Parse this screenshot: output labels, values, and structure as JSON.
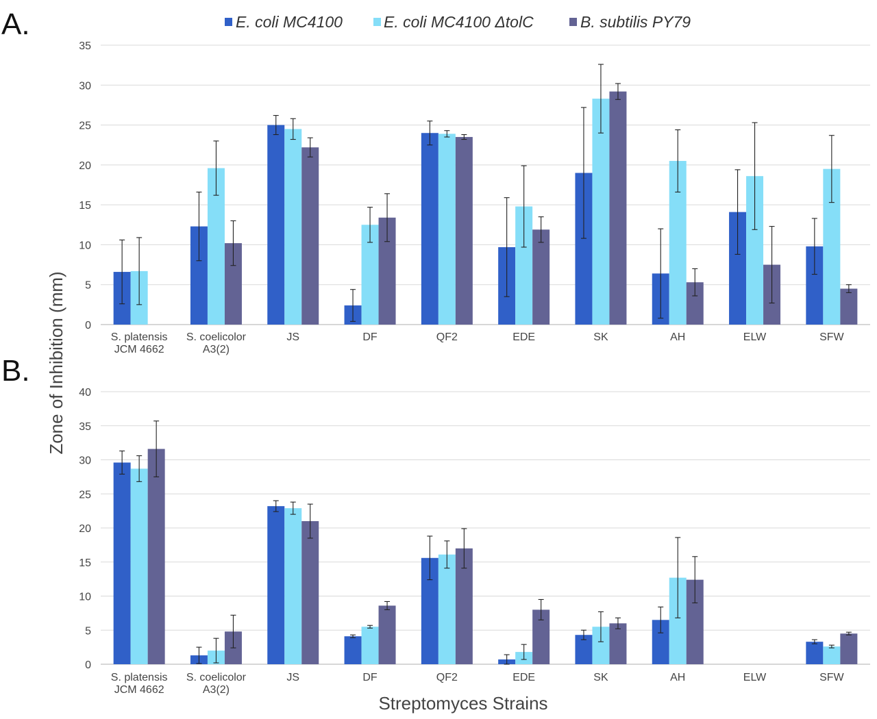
{
  "panels": [
    "A.",
    "B."
  ],
  "legend": [
    {
      "name": "E. coli MC4100",
      "color": "#3060c8"
    },
    {
      "name": "E. coli MC4100 ΔtolC",
      "color": "#85def8"
    },
    {
      "name": "B. subtilis PY79",
      "color": "#636394"
    }
  ],
  "ylabel": "Zone of Inhibition (mm)",
  "xlabel": "Streptomyces Strains",
  "chart_data": [
    {
      "type": "bar",
      "panel": "A.",
      "categories": [
        [
          "S. platensis",
          "JCM 4662"
        ],
        [
          "S. coelicolor",
          "A3(2)"
        ],
        [
          "JS"
        ],
        [
          "DF"
        ],
        [
          "QF2"
        ],
        [
          "EDE"
        ],
        [
          "SK"
        ],
        [
          "AH"
        ],
        [
          "ELW"
        ],
        [
          "SFW"
        ]
      ],
      "ylim": [
        0,
        35
      ],
      "yticks": [
        0,
        5,
        10,
        15,
        20,
        25,
        30,
        35
      ],
      "grid": true,
      "legend_position": "top",
      "series": [
        {
          "name": "E. coli MC4100",
          "values": [
            6.6,
            12.3,
            25.0,
            2.4,
            24.0,
            9.7,
            19.0,
            6.4,
            14.1,
            9.8
          ],
          "errors": [
            4.0,
            4.3,
            1.2,
            2.0,
            1.5,
            6.2,
            8.2,
            5.6,
            5.3,
            3.5
          ]
        },
        {
          "name": "E. coli MC4100 ΔtolC",
          "values": [
            6.7,
            19.6,
            24.5,
            12.5,
            23.9,
            14.8,
            28.3,
            20.5,
            18.6,
            19.5
          ],
          "errors": [
            4.2,
            3.4,
            1.3,
            2.2,
            0.4,
            5.1,
            4.3,
            3.9,
            6.7,
            4.2
          ]
        },
        {
          "name": "B. subtilis PY79",
          "values": [
            null,
            10.2,
            22.2,
            13.4,
            23.5,
            11.9,
            29.2,
            5.3,
            7.5,
            4.5
          ],
          "errors": [
            null,
            2.8,
            1.2,
            3.0,
            0.3,
            1.6,
            1.0,
            1.7,
            4.8,
            0.5
          ]
        }
      ]
    },
    {
      "type": "bar",
      "panel": "B.",
      "categories": [
        [
          "S. platensis",
          "JCM 4662"
        ],
        [
          "S. coelicolor",
          "A3(2)"
        ],
        [
          "JS"
        ],
        [
          "DF"
        ],
        [
          "QF2"
        ],
        [
          "EDE"
        ],
        [
          "SK"
        ],
        [
          "AH"
        ],
        [
          "ELW"
        ],
        [
          "SFW"
        ]
      ],
      "ylim": [
        0,
        40
      ],
      "yticks": [
        0,
        5,
        10,
        15,
        20,
        25,
        30,
        35,
        40
      ],
      "grid": true,
      "series": [
        {
          "name": "E. coli MC4100",
          "values": [
            29.6,
            1.3,
            23.2,
            4.1,
            15.6,
            0.7,
            4.3,
            6.5,
            null,
            3.3
          ],
          "errors": [
            1.7,
            1.2,
            0.8,
            0.2,
            3.2,
            0.7,
            0.7,
            1.9,
            null,
            0.3
          ]
        },
        {
          "name": "E. coli MC4100 ΔtolC",
          "values": [
            28.7,
            2.0,
            22.9,
            5.5,
            16.1,
            1.8,
            5.5,
            12.7,
            null,
            2.6
          ],
          "errors": [
            1.9,
            1.8,
            0.9,
            0.2,
            2.0,
            1.1,
            2.2,
            5.9,
            null,
            0.2
          ]
        },
        {
          "name": "B. subtilis PY79",
          "values": [
            31.6,
            4.8,
            21.0,
            8.6,
            17.0,
            8.0,
            6.0,
            12.4,
            null,
            4.5
          ],
          "errors": [
            4.1,
            2.4,
            2.5,
            0.6,
            2.9,
            1.5,
            0.8,
            3.4,
            null,
            0.2
          ]
        }
      ]
    }
  ]
}
